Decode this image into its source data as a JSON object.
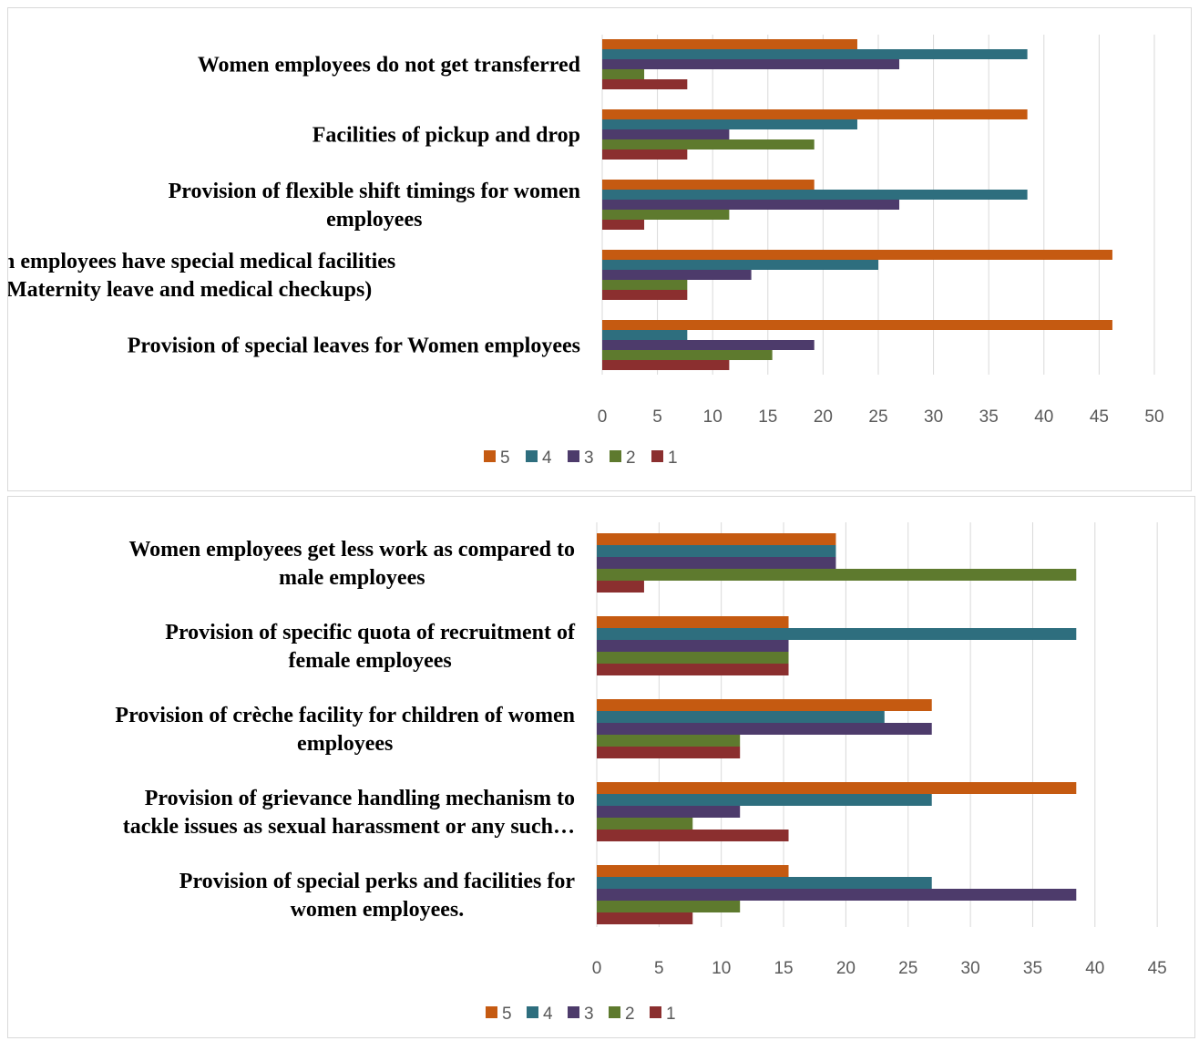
{
  "colors": {
    "5": "#c55a11",
    "4": "#2e6e7e",
    "3": "#4d3b6b",
    "2": "#5e7a2e",
    "1": "#8b2f2f",
    "grid": "#d9d9d9",
    "tick": "#595959"
  },
  "chart_data": [
    {
      "type": "bar",
      "orientation": "horizontal",
      "xlim": [
        0,
        50
      ],
      "ticks": [
        "0",
        "5",
        "10",
        "15",
        "20",
        "25",
        "30",
        "35",
        "40",
        "45",
        "50"
      ],
      "grid": true,
      "legend_position": "bottom",
      "legend": [
        "5",
        "4",
        "3",
        "2",
        "1"
      ],
      "categories": [
        {
          "lines": [
            "Women employees do not get transferred"
          ]
        },
        {
          "lines": [
            "Facilities of  pickup and drop"
          ]
        },
        {
          "lines": [
            "Provision of  flexible shift timings for women",
            "employees"
          ]
        },
        {
          "lines": [
            "n employees have special medical facilities",
            "Maternity leave and medical checkups)"
          ]
        },
        {
          "lines": [
            "Provision of special leaves for Women employees"
          ]
        }
      ],
      "series": [
        {
          "name": "5",
          "values": [
            23.1,
            38.5,
            19.2,
            46.2,
            46.2
          ]
        },
        {
          "name": "4",
          "values": [
            38.5,
            23.1,
            38.5,
            25.0,
            7.7
          ]
        },
        {
          "name": "3",
          "values": [
            26.9,
            11.5,
            26.9,
            13.5,
            19.2
          ]
        },
        {
          "name": "2",
          "values": [
            3.8,
            19.2,
            11.5,
            7.7,
            15.4
          ]
        },
        {
          "name": "1",
          "values": [
            7.7,
            7.7,
            3.8,
            7.7,
            11.5
          ]
        }
      ]
    },
    {
      "type": "bar",
      "orientation": "horizontal",
      "xlim": [
        0,
        45
      ],
      "ticks": [
        "0",
        "5",
        "10",
        "15",
        "20",
        "25",
        "30",
        "35",
        "40",
        "45"
      ],
      "grid": true,
      "legend_position": "bottom",
      "legend": [
        "5",
        "4",
        "3",
        "2",
        "1"
      ],
      "categories": [
        {
          "lines": [
            "Women employees get less work as compared to",
            "male employees"
          ]
        },
        {
          "lines": [
            "Provision of specific quota  of recruitment  of",
            "female employees"
          ]
        },
        {
          "lines": [
            "Provision of crèche facility for children of women",
            "employees"
          ]
        },
        {
          "lines": [
            "Provision of grievance handling mechanism to",
            "tackle issues as sexual harassment or any such…"
          ]
        },
        {
          "lines": [
            "Provision of special perks and facilities for",
            "women employees."
          ]
        }
      ],
      "series": [
        {
          "name": "5",
          "values": [
            19.2,
            15.4,
            26.9,
            38.5,
            15.4
          ]
        },
        {
          "name": "4",
          "values": [
            19.2,
            38.5,
            23.1,
            26.9,
            26.9
          ]
        },
        {
          "name": "3",
          "values": [
            19.2,
            15.4,
            26.9,
            11.5,
            38.5
          ]
        },
        {
          "name": "2",
          "values": [
            38.5,
            15.4,
            11.5,
            7.7,
            11.5
          ]
        },
        {
          "name": "1",
          "values": [
            3.8,
            15.4,
            11.5,
            15.4,
            7.7
          ]
        }
      ]
    }
  ]
}
